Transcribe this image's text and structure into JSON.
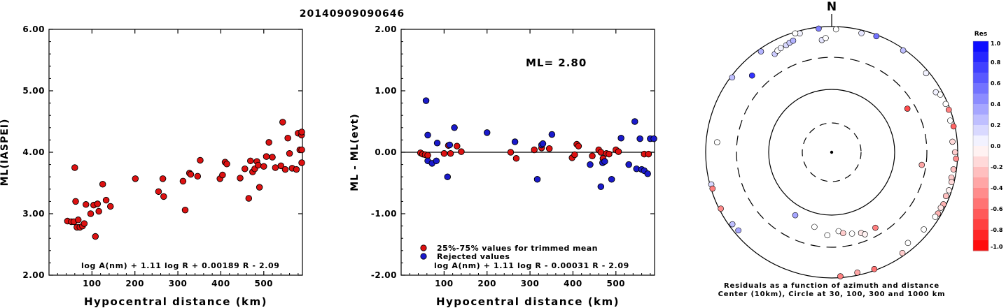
{
  "title": "20140909090646",
  "colors": {
    "red": "#dd1111",
    "blue": "#1a1acc",
    "axis": "#000000"
  },
  "chart_data": [
    {
      "type": "scatter",
      "id": "ml_vs_distance",
      "xlabel": "Hypocentral distance (km)",
      "ylabel": "ML(IASPEI)",
      "xlim": [
        0,
        590
      ],
      "ylim": [
        2.0,
        6.0
      ],
      "xticks": [
        "100",
        "200",
        "300",
        "400",
        "500"
      ],
      "xtick_values": [
        100,
        200,
        300,
        400,
        500
      ],
      "yticks": [
        "2.00",
        "3.00",
        "4.00",
        "5.00",
        "6.00"
      ],
      "ytick_values": [
        2.0,
        3.0,
        4.0,
        5.0,
        6.0
      ],
      "formula": "log A(nm) + 1.11 log R + 0.00189 R - 2.09",
      "points": [
        [
          43,
          2.88
        ],
        [
          52,
          2.87
        ],
        [
          58,
          2.87
        ],
        [
          60,
          3.75
        ],
        [
          62,
          3.2
        ],
        [
          65,
          2.78
        ],
        [
          68,
          2.9
        ],
        [
          72,
          2.78
        ],
        [
          78,
          2.8
        ],
        [
          82,
          2.84
        ],
        [
          86,
          3.15
        ],
        [
          97,
          3.0
        ],
        [
          104,
          3.14
        ],
        [
          108,
          2.63
        ],
        [
          113,
          3.16
        ],
        [
          116,
          3.04
        ],
        [
          125,
          3.48
        ],
        [
          133,
          3.22
        ],
        [
          143,
          3.12
        ],
        [
          201,
          3.57
        ],
        [
          255,
          3.36
        ],
        [
          265,
          3.57
        ],
        [
          267,
          3.28
        ],
        [
          312,
          3.53
        ],
        [
          317,
          3.06
        ],
        [
          327,
          3.66
        ],
        [
          330,
          3.64
        ],
        [
          346,
          3.61
        ],
        [
          352,
          3.87
        ],
        [
          398,
          3.57
        ],
        [
          404,
          3.63
        ],
        [
          410,
          3.84
        ],
        [
          414,
          3.81
        ],
        [
          445,
          3.58
        ],
        [
          456,
          3.73
        ],
        [
          465,
          3.25
        ],
        [
          469,
          3.86
        ],
        [
          474,
          3.68
        ],
        [
          479,
          3.73
        ],
        [
          484,
          3.85
        ],
        [
          487,
          3.79
        ],
        [
          490,
          3.43
        ],
        [
          500,
          3.77
        ],
        [
          506,
          3.93
        ],
        [
          512,
          4.16
        ],
        [
          520,
          3.92
        ],
        [
          527,
          3.75
        ],
        [
          540,
          3.78
        ],
        [
          544,
          4.49
        ],
        [
          550,
          3.72
        ],
        [
          556,
          4.23
        ],
        [
          560,
          3.98
        ],
        [
          566,
          3.74
        ],
        [
          576,
          3.72
        ],
        [
          580,
          4.31
        ],
        [
          584,
          4.04
        ],
        [
          588,
          4.28
        ],
        [
          592,
          4.04
        ],
        [
          594,
          4.33
        ],
        [
          598,
          3.83
        ]
      ]
    },
    {
      "type": "scatter",
      "id": "residual_vs_distance",
      "xlabel": "Hypocentral distance (km)",
      "ylabel": "ML - ML(evt)",
      "xlim": [
        0,
        590
      ],
      "ylim": [
        -2.0,
        2.0
      ],
      "xticks": [
        "100",
        "200",
        "300",
        "400",
        "500"
      ],
      "xtick_values": [
        100,
        200,
        300,
        400,
        500
      ],
      "yticks": [
        "-2.00",
        "-1.00",
        "0.00",
        "1.00",
        "2.00"
      ],
      "ytick_values": [
        -2.0,
        -1.0,
        0.0,
        1.0,
        2.0
      ],
      "annotation": "ML= 2.80",
      "formula": "log A(nm) + 1.11 log R - 0.00031 R - 2.09",
      "legend": [
        {
          "label": "25%-75% values for trimmed mean",
          "color": "#dd1111"
        },
        {
          "label": "Rejected values",
          "color": "#1a1acc"
        }
      ],
      "series": [
        {
          "name": "25%-75% values for trimmed mean",
          "color": "#dd1111",
          "points": [
            [
              45,
              -0.01
            ],
            [
              50,
              -0.03
            ],
            [
              56,
              -0.04
            ],
            [
              62,
              -0.05
            ],
            [
              100,
              -0.02
            ],
            [
              110,
              0.11
            ],
            [
              115,
              -0.02
            ],
            [
              130,
              0.1
            ],
            [
              140,
              0.01
            ],
            [
              255,
              0.0
            ],
            [
              268,
              -0.1
            ],
            [
              310,
              0.04
            ],
            [
              327,
              0.07
            ],
            [
              345,
              0.06
            ],
            [
              398,
              -0.09
            ],
            [
              404,
              -0.04
            ],
            [
              409,
              0.13
            ],
            [
              413,
              0.1
            ],
            [
              445,
              -0.06
            ],
            [
              460,
              0.04
            ],
            [
              465,
              0.0
            ],
            [
              470,
              -0.1
            ],
            [
              478,
              -0.02
            ],
            [
              484,
              -0.03
            ],
            [
              500,
              0.04
            ],
            [
              506,
              0.01
            ],
            [
              566,
              -0.03
            ],
            [
              576,
              -0.03
            ]
          ]
        },
        {
          "name": "Rejected values",
          "color": "#1a1acc",
          "points": [
            [
              58,
              0.84
            ],
            [
              62,
              0.28
            ],
            [
              62,
              -0.14
            ],
            [
              72,
              -0.18
            ],
            [
              82,
              -0.14
            ],
            [
              84,
              0.15
            ],
            [
              108,
              -0.4
            ],
            [
              113,
              0.12
            ],
            [
              124,
              0.4
            ],
            [
              200,
              0.32
            ],
            [
              265,
              0.17
            ],
            [
              317,
              -0.44
            ],
            [
              327,
              0.12
            ],
            [
              330,
              0.14
            ],
            [
              351,
              0.29
            ],
            [
              440,
              -0.2
            ],
            [
              465,
              -0.56
            ],
            [
              469,
              -0.17
            ],
            [
              474,
              -0.15
            ],
            [
              490,
              -0.44
            ],
            [
              512,
              0.23
            ],
            [
              530,
              -0.2
            ],
            [
              544,
              0.5
            ],
            [
              548,
              -0.27
            ],
            [
              556,
              0.22
            ],
            [
              560,
              -0.28
            ],
            [
              566,
              -0.3
            ],
            [
              574,
              -0.35
            ],
            [
              580,
              0.22
            ],
            [
              594,
              0.22
            ]
          ]
        }
      ]
    },
    {
      "type": "scatter",
      "id": "azimuth_residual_map",
      "north_label": "N",
      "caption_line1": "Residuals as a function of azimuth and distance",
      "caption_line2": "Center (10km), Circle at 30, 100, 300 and 1000 km",
      "colorbar_title": "Res",
      "colorbar_ticks": [
        "1.0",
        "0.8",
        "0.6",
        "0.4",
        "0.2",
        "0.0",
        "-0.2",
        "-0.4",
        "-0.6",
        "-0.8",
        "-1.0"
      ],
      "colorbar_values": [
        1.0,
        0.8,
        0.6,
        0.4,
        0.2,
        0.0,
        -0.2,
        -0.4,
        -0.6,
        -0.8,
        -1.0
      ],
      "rings_km": [
        30,
        100,
        300,
        1000
      ],
      "stations": [
        {
          "az": 354,
          "dist": 1000,
          "res": 0.5
        },
        {
          "az": 2,
          "dist": 900,
          "res": 0.0
        },
        {
          "az": 14,
          "dist": 890,
          "res": 0.1
        },
        {
          "az": 21,
          "dist": 950,
          "res": 0.55
        },
        {
          "az": 35,
          "dist": 950,
          "res": 0.25
        },
        {
          "az": 50,
          "dist": 900,
          "res": 0.05
        },
        {
          "az": 60,
          "dist": 800,
          "res": 0.05
        },
        {
          "az": 62,
          "dist": 890,
          "res": 0.0
        },
        {
          "az": 67,
          "dist": 920,
          "res": 0.0
        },
        {
          "az": 70,
          "dist": 950,
          "res": -0.5
        },
        {
          "az": 75,
          "dist": 880,
          "res": 0.0
        },
        {
          "az": 78,
          "dist": 950,
          "res": -0.6
        },
        {
          "az": 85,
          "dist": 830,
          "res": -0.15
        },
        {
          "az": 90,
          "dist": 900,
          "res": -0.2
        },
        {
          "az": 93,
          "dist": 960,
          "res": -0.45
        },
        {
          "az": 98,
          "dist": 890,
          "res": -0.25
        },
        {
          "az": 102,
          "dist": 870,
          "res": -0.2
        },
        {
          "az": 104,
          "dist": 910,
          "res": -0.15
        },
        {
          "az": 108,
          "dist": 900,
          "res": -0.05
        },
        {
          "az": 111,
          "dist": 870,
          "res": -0.25
        },
        {
          "az": 115,
          "dist": 900,
          "res": -0.3
        },
        {
          "az": 117,
          "dist": 870,
          "res": -0.1
        },
        {
          "az": 120,
          "dist": 880,
          "res": -0.3
        },
        {
          "az": 122,
          "dist": 860,
          "res": 0.0
        },
        {
          "az": 130,
          "dist": 800,
          "res": 0.0
        },
        {
          "az": 140,
          "dist": 750,
          "res": 0.0
        },
        {
          "az": 145,
          "dist": 900,
          "res": -0.2
        },
        {
          "az": 160,
          "dist": 960,
          "res": -0.55
        },
        {
          "az": 168,
          "dist": 900,
          "res": -0.35
        },
        {
          "az": 176,
          "dist": 1000,
          "res": -0.5
        },
        {
          "az": 183,
          "dist": 200,
          "res": 0.0
        },
        {
          "az": 175,
          "dist": 175,
          "res": 0.0
        },
        {
          "az": 172,
          "dist": 190,
          "res": -0.2
        },
        {
          "az": 166,
          "dist": 205,
          "res": 0.0
        },
        {
          "az": 160,
          "dist": 220,
          "res": -0.1
        },
        {
          "az": 158,
          "dist": 240,
          "res": -0.05
        },
        {
          "az": 150,
          "dist": 230,
          "res": -0.5
        },
        {
          "az": 193,
          "dist": 160,
          "res": 0.0
        },
        {
          "az": 210,
          "dist": 140,
          "res": 0.35
        },
        {
          "az": 98,
          "dist": 260,
          "res": -0.35
        },
        {
          "az": 60,
          "dist": 230,
          "res": -0.7
        },
        {
          "az": 230,
          "dist": 850,
          "res": 0.35
        },
        {
          "az": 234,
          "dist": 880,
          "res": 0.25
        },
        {
          "az": 243,
          "dist": 940,
          "res": -0.45
        },
        {
          "az": 255,
          "dist": 970,
          "res": 0.15
        },
        {
          "az": 253,
          "dist": 1000,
          "res": -0.5
        },
        {
          "az": 275,
          "dist": 650,
          "res": 0.0
        },
        {
          "az": 307,
          "dist": 1000,
          "res": 0.25
        },
        {
          "az": 325,
          "dist": 900,
          "res": 0.3
        },
        {
          "az": 314,
          "dist": 550,
          "res": 0.8
        },
        {
          "az": 330,
          "dist": 620,
          "res": 0.2
        },
        {
          "az": 332,
          "dist": 660,
          "res": 0.0
        },
        {
          "az": 334,
          "dist": 680,
          "res": 0.05
        },
        {
          "az": 337,
          "dist": 690,
          "res": 0.15
        },
        {
          "az": 339,
          "dist": 720,
          "res": 0.2
        },
        {
          "az": 341,
          "dist": 740,
          "res": 0.3
        },
        {
          "az": 355,
          "dist": 600,
          "res": 0.1
        },
        {
          "az": 357,
          "dist": 640,
          "res": 0.0
        },
        {
          "az": 345,
          "dist": 900,
          "res": 0.05
        },
        {
          "az": 343,
          "dist": 950,
          "res": 0.0
        }
      ]
    }
  ]
}
